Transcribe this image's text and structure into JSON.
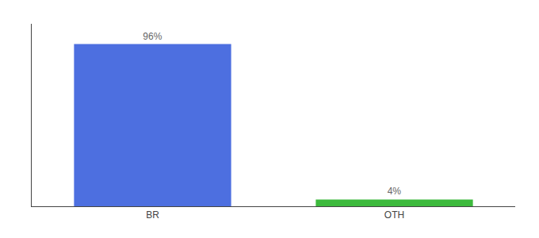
{
  "chart_data": {
    "type": "bar",
    "categories": [
      "BR",
      "OTH"
    ],
    "values": [
      96,
      4
    ],
    "value_labels": [
      "96%",
      "4%"
    ],
    "colors": [
      "#4d6fe0",
      "#3dba3d"
    ],
    "ylim": [
      0,
      108
    ],
    "grid": false,
    "data_labels": true,
    "tick_labels": "x"
  }
}
